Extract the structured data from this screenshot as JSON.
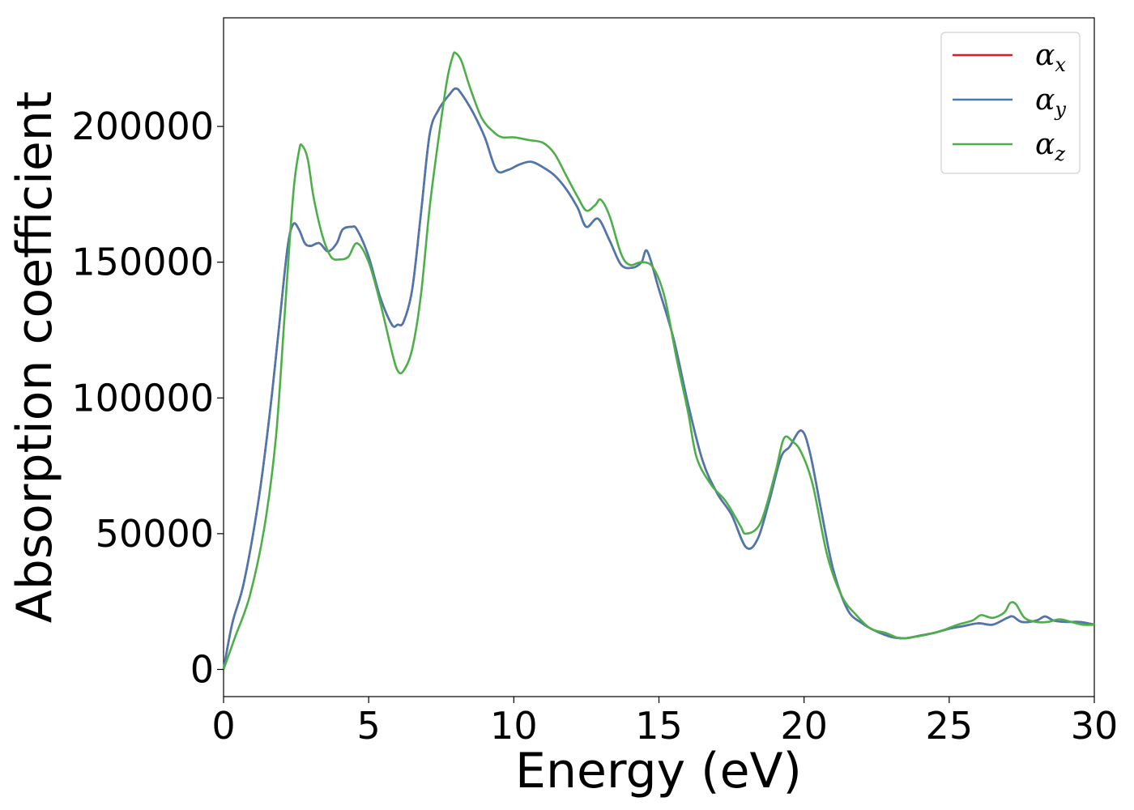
{
  "chart_data": {
    "type": "line",
    "title": "",
    "xlabel": "Energy (eV)",
    "ylabel": "Absorption coefficient",
    "xlim": [
      0,
      30
    ],
    "ylim": [
      -10000,
      240000
    ],
    "xticks": [
      0,
      5,
      10,
      15,
      20,
      25,
      30
    ],
    "yticks": [
      0,
      50000,
      100000,
      150000,
      200000
    ],
    "grid": false,
    "legend_position": "top-right",
    "series": [
      {
        "name": "α",
        "subscript": "x",
        "color": "#e41a1c",
        "x": [
          0,
          0.3,
          0.7,
          1.2,
          1.6,
          1.9,
          2.2,
          2.4,
          2.6,
          2.8,
          3.0,
          3.3,
          3.6,
          3.9,
          4.1,
          4.4,
          4.6,
          5.0,
          5.4,
          5.8,
          6.0,
          6.2,
          6.5,
          6.8,
          7.1,
          7.4,
          7.8,
          8.0,
          8.2,
          8.6,
          9.0,
          9.4,
          9.8,
          10.2,
          10.6,
          11.0,
          11.4,
          11.8,
          12.2,
          12.5,
          12.9,
          13.3,
          13.7,
          14.1,
          14.4,
          14.6,
          15.0,
          15.5,
          16.0,
          16.5,
          17.0,
          17.5,
          18.0,
          18.4,
          18.8,
          19.2,
          19.5,
          19.9,
          20.2,
          20.6,
          21.0,
          21.5,
          22.0,
          22.5,
          23.0,
          23.5,
          24.0,
          24.5,
          25.0,
          25.5,
          26.0,
          26.5,
          27.0,
          27.2,
          27.5,
          28.0,
          28.3,
          28.6,
          29.0,
          29.5,
          30.0
        ],
        "values": [
          0,
          17000,
          32000,
          62000,
          95000,
          125000,
          155000,
          164000,
          162000,
          157000,
          156000,
          157000,
          154000,
          157000,
          162000,
          163000,
          162000,
          152000,
          137000,
          127000,
          127000,
          128000,
          140000,
          168000,
          197000,
          206000,
          212000,
          214000,
          212000,
          205000,
          196000,
          184000,
          184000,
          186000,
          187000,
          185000,
          182000,
          177000,
          170000,
          163000,
          166000,
          158000,
          149000,
          148000,
          150000,
          154000,
          140000,
          122000,
          98000,
          77000,
          65000,
          57000,
          45000,
          48000,
          62000,
          78000,
          82000,
          88000,
          80000,
          58000,
          37000,
          22000,
          17000,
          14000,
          12000,
          11500,
          12500,
          13500,
          15000,
          16000,
          17000,
          16500,
          19000,
          19500,
          17500,
          18000,
          19500,
          18000,
          17500,
          17500,
          16500
        ]
      },
      {
        "name": "α",
        "subscript": "y",
        "color": "#4a78b0",
        "x": [
          0,
          0.3,
          0.7,
          1.2,
          1.6,
          1.9,
          2.2,
          2.4,
          2.6,
          2.8,
          3.0,
          3.3,
          3.6,
          3.9,
          4.1,
          4.4,
          4.6,
          5.0,
          5.4,
          5.8,
          6.0,
          6.2,
          6.5,
          6.8,
          7.1,
          7.4,
          7.8,
          8.0,
          8.2,
          8.6,
          9.0,
          9.4,
          9.8,
          10.2,
          10.6,
          11.0,
          11.4,
          11.8,
          12.2,
          12.5,
          12.9,
          13.3,
          13.7,
          14.1,
          14.4,
          14.6,
          15.0,
          15.5,
          16.0,
          16.5,
          17.0,
          17.5,
          18.0,
          18.4,
          18.8,
          19.2,
          19.5,
          19.9,
          20.2,
          20.6,
          21.0,
          21.5,
          22.0,
          22.5,
          23.0,
          23.5,
          24.0,
          24.5,
          25.0,
          25.5,
          26.0,
          26.5,
          27.0,
          27.2,
          27.5,
          28.0,
          28.3,
          28.6,
          29.0,
          29.5,
          30.0
        ],
        "values": [
          0,
          17000,
          32000,
          62000,
          95000,
          125000,
          155000,
          164000,
          162000,
          157000,
          156000,
          157000,
          154000,
          157000,
          162000,
          163000,
          162000,
          152000,
          137000,
          127000,
          127000,
          128000,
          140000,
          168000,
          197000,
          206000,
          212000,
          214000,
          212000,
          205000,
          196000,
          184000,
          184000,
          186000,
          187000,
          185000,
          182000,
          177000,
          170000,
          163000,
          166000,
          158000,
          149000,
          148000,
          150000,
          154000,
          140000,
          122000,
          98000,
          77000,
          65000,
          57000,
          45000,
          48000,
          62000,
          78000,
          82000,
          88000,
          80000,
          58000,
          37000,
          22000,
          17000,
          14000,
          12000,
          11500,
          12500,
          13500,
          15000,
          16000,
          17000,
          16500,
          19000,
          19500,
          17500,
          18000,
          19500,
          18000,
          17500,
          17500,
          16500
        ]
      },
      {
        "name": "α",
        "subscript": "z",
        "color": "#4daf4a",
        "x": [
          0,
          0.4,
          0.9,
          1.4,
          1.8,
          2.1,
          2.4,
          2.6,
          2.7,
          2.9,
          3.1,
          3.4,
          3.7,
          4.0,
          4.3,
          4.6,
          5.0,
          5.4,
          5.8,
          6.0,
          6.2,
          6.5,
          6.8,
          7.1,
          7.4,
          7.7,
          7.9,
          8.0,
          8.2,
          8.5,
          8.9,
          9.3,
          9.6,
          10.0,
          10.5,
          11.0,
          11.4,
          11.8,
          12.2,
          12.5,
          12.8,
          13.0,
          13.3,
          13.7,
          14.0,
          14.4,
          14.8,
          15.2,
          15.6,
          16.0,
          16.3,
          16.8,
          17.3,
          17.8,
          18.0,
          18.5,
          19.0,
          19.3,
          19.6,
          19.9,
          20.3,
          20.8,
          21.3,
          21.8,
          22.3,
          22.8,
          23.3,
          23.8,
          24.3,
          24.8,
          25.3,
          25.8,
          26.1,
          26.5,
          26.9,
          27.1,
          27.3,
          27.6,
          28.0,
          28.4,
          28.8,
          29.2,
          29.6,
          30.0
        ],
        "values": [
          0,
          12000,
          27000,
          52000,
          85000,
          130000,
          175000,
          191000,
          193000,
          188000,
          174000,
          160000,
          152000,
          151000,
          152000,
          157000,
          150000,
          135000,
          117000,
          110000,
          110000,
          118000,
          138000,
          170000,
          195000,
          217000,
          226000,
          227000,
          224000,
          214000,
          203000,
          198000,
          196000,
          196000,
          195000,
          194000,
          190000,
          182000,
          174000,
          169000,
          171000,
          173000,
          167000,
          153000,
          149000,
          150000,
          148000,
          137000,
          115000,
          95000,
          78000,
          68000,
          62000,
          53000,
          50000,
          54000,
          72000,
          85000,
          84000,
          80000,
          68000,
          42000,
          27000,
          20000,
          15000,
          13500,
          11500,
          12000,
          13000,
          14500,
          16500,
          18000,
          20000,
          19000,
          21000,
          24500,
          24000,
          19000,
          17500,
          17500,
          18500,
          17500,
          16500,
          16500
        ]
      }
    ]
  }
}
